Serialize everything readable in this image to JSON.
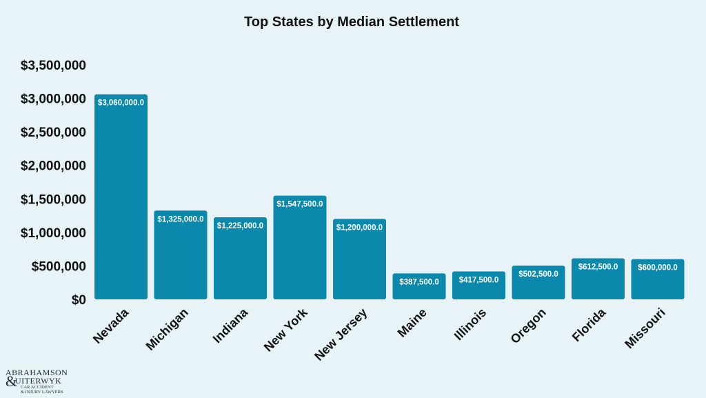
{
  "chart_data": {
    "type": "bar",
    "title": "Top States by Median Settlement",
    "categories": [
      "Nevada",
      "Michigan",
      "Indiana",
      "New York",
      "New Jersey",
      "Maine",
      "Illinois",
      "Oregon",
      "Florida",
      "Missouri"
    ],
    "values": [
      3060000,
      1325000,
      1225000,
      1547500,
      1200000,
      387500,
      417500,
      502500,
      612500,
      600000
    ],
    "data_labels": [
      "$3,060,000.0",
      "$1,325,000.0",
      "$1,225,000.0",
      "$1,547,500.0",
      "$1,200,000.0",
      "$387,500.0",
      "$417,500.0",
      "$502,500.0",
      "$612,500.0",
      "$600,000.0"
    ],
    "ylim": [
      0,
      3500000
    ],
    "yticks": [
      0,
      500000,
      1000000,
      1500000,
      2000000,
      2500000,
      3000000,
      3500000
    ],
    "ytick_labels": [
      "$0",
      "$500,000",
      "$1,000,000",
      "$1,500,000",
      "$2,000,000",
      "$2,500,000",
      "$3,000,000",
      "$3,500,000"
    ],
    "xlabel": "",
    "ylabel": "",
    "grid": false,
    "legend": "none",
    "bar_color": "#0b89ad",
    "background_color": "#e8f3f7"
  },
  "logo": {
    "line1": "ABRAHAMSON",
    "line2": "UITERWYK",
    "line3": "CAR ACCIDENT",
    "line4": "& INJURY LAWYERS",
    "mark": "&"
  }
}
